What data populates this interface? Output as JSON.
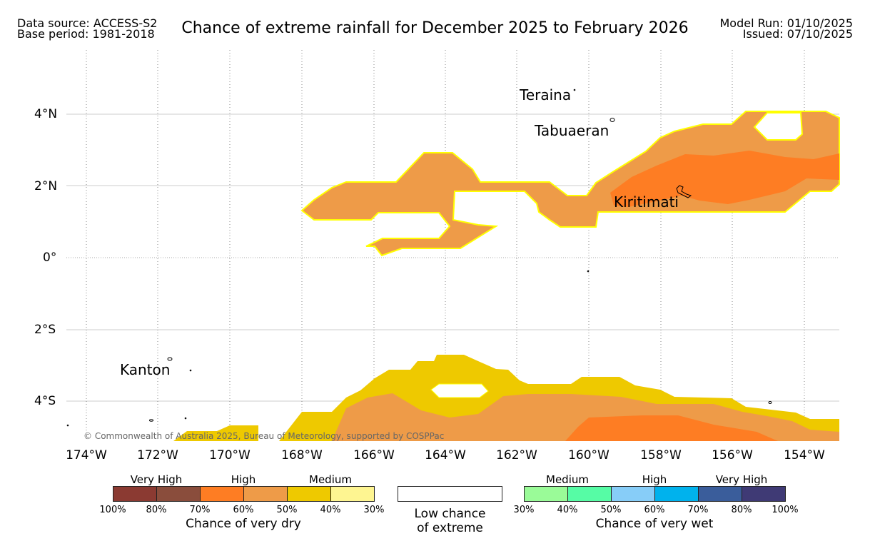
{
  "header": {
    "source_line1": "Data source: ACCESS-S2",
    "source_line2": "Base period: 1981-2018",
    "title": "Chance of extreme rainfall for December 2025 to February 2026",
    "model_run": "Model Run: 01/10/2025",
    "issued": "Issued: 07/10/2025"
  },
  "map": {
    "lat_labels": [
      "4°N",
      "2°N",
      "0°",
      "2°S",
      "4°S"
    ],
    "lon_labels": [
      "174°W",
      "172°W",
      "170°W",
      "168°W",
      "166°W",
      "164°W",
      "162°W",
      "160°W",
      "158°W",
      "156°W",
      "154°W"
    ],
    "places": {
      "teraina": "Teraina",
      "tabuaeran": "Tabuaeran",
      "kiritimati": "Kiritimati",
      "kanton": "Kanton"
    },
    "copyright": "© Commonwealth of Australia 2025, Bureau of Meteorology, supported by COSPPac"
  },
  "legend": {
    "dry": {
      "headers": [
        "Very High",
        "High",
        "Medium"
      ],
      "ticks": [
        "100%",
        "80%",
        "70%",
        "60%",
        "50%",
        "40%",
        "30%"
      ],
      "colors": [
        "#8b3a32",
        "#8a4d3c",
        "#fe7d23",
        "#ee9b48",
        "#eec900",
        "#fef591"
      ],
      "title": "Chance of very dry"
    },
    "low": {
      "line1": "Low chance",
      "line2": "of extreme"
    },
    "wet": {
      "headers": [
        "Medium",
        "High",
        "Very High"
      ],
      "ticks": [
        "30%",
        "40%",
        "50%",
        "60%",
        "70%",
        "80%",
        "100%"
      ],
      "colors": [
        "#9afb98",
        "#56fca5",
        "#87cdf8",
        "#00b2ed",
        "#3a5d9b",
        "#3f3a75"
      ],
      "title": "Chance of very wet"
    }
  },
  "colors": {
    "medium_dry": "#eec900",
    "high_dry_50": "#ee9b48",
    "high_dry_60": "#fe7d23",
    "contour_edge": "#ffff00"
  }
}
